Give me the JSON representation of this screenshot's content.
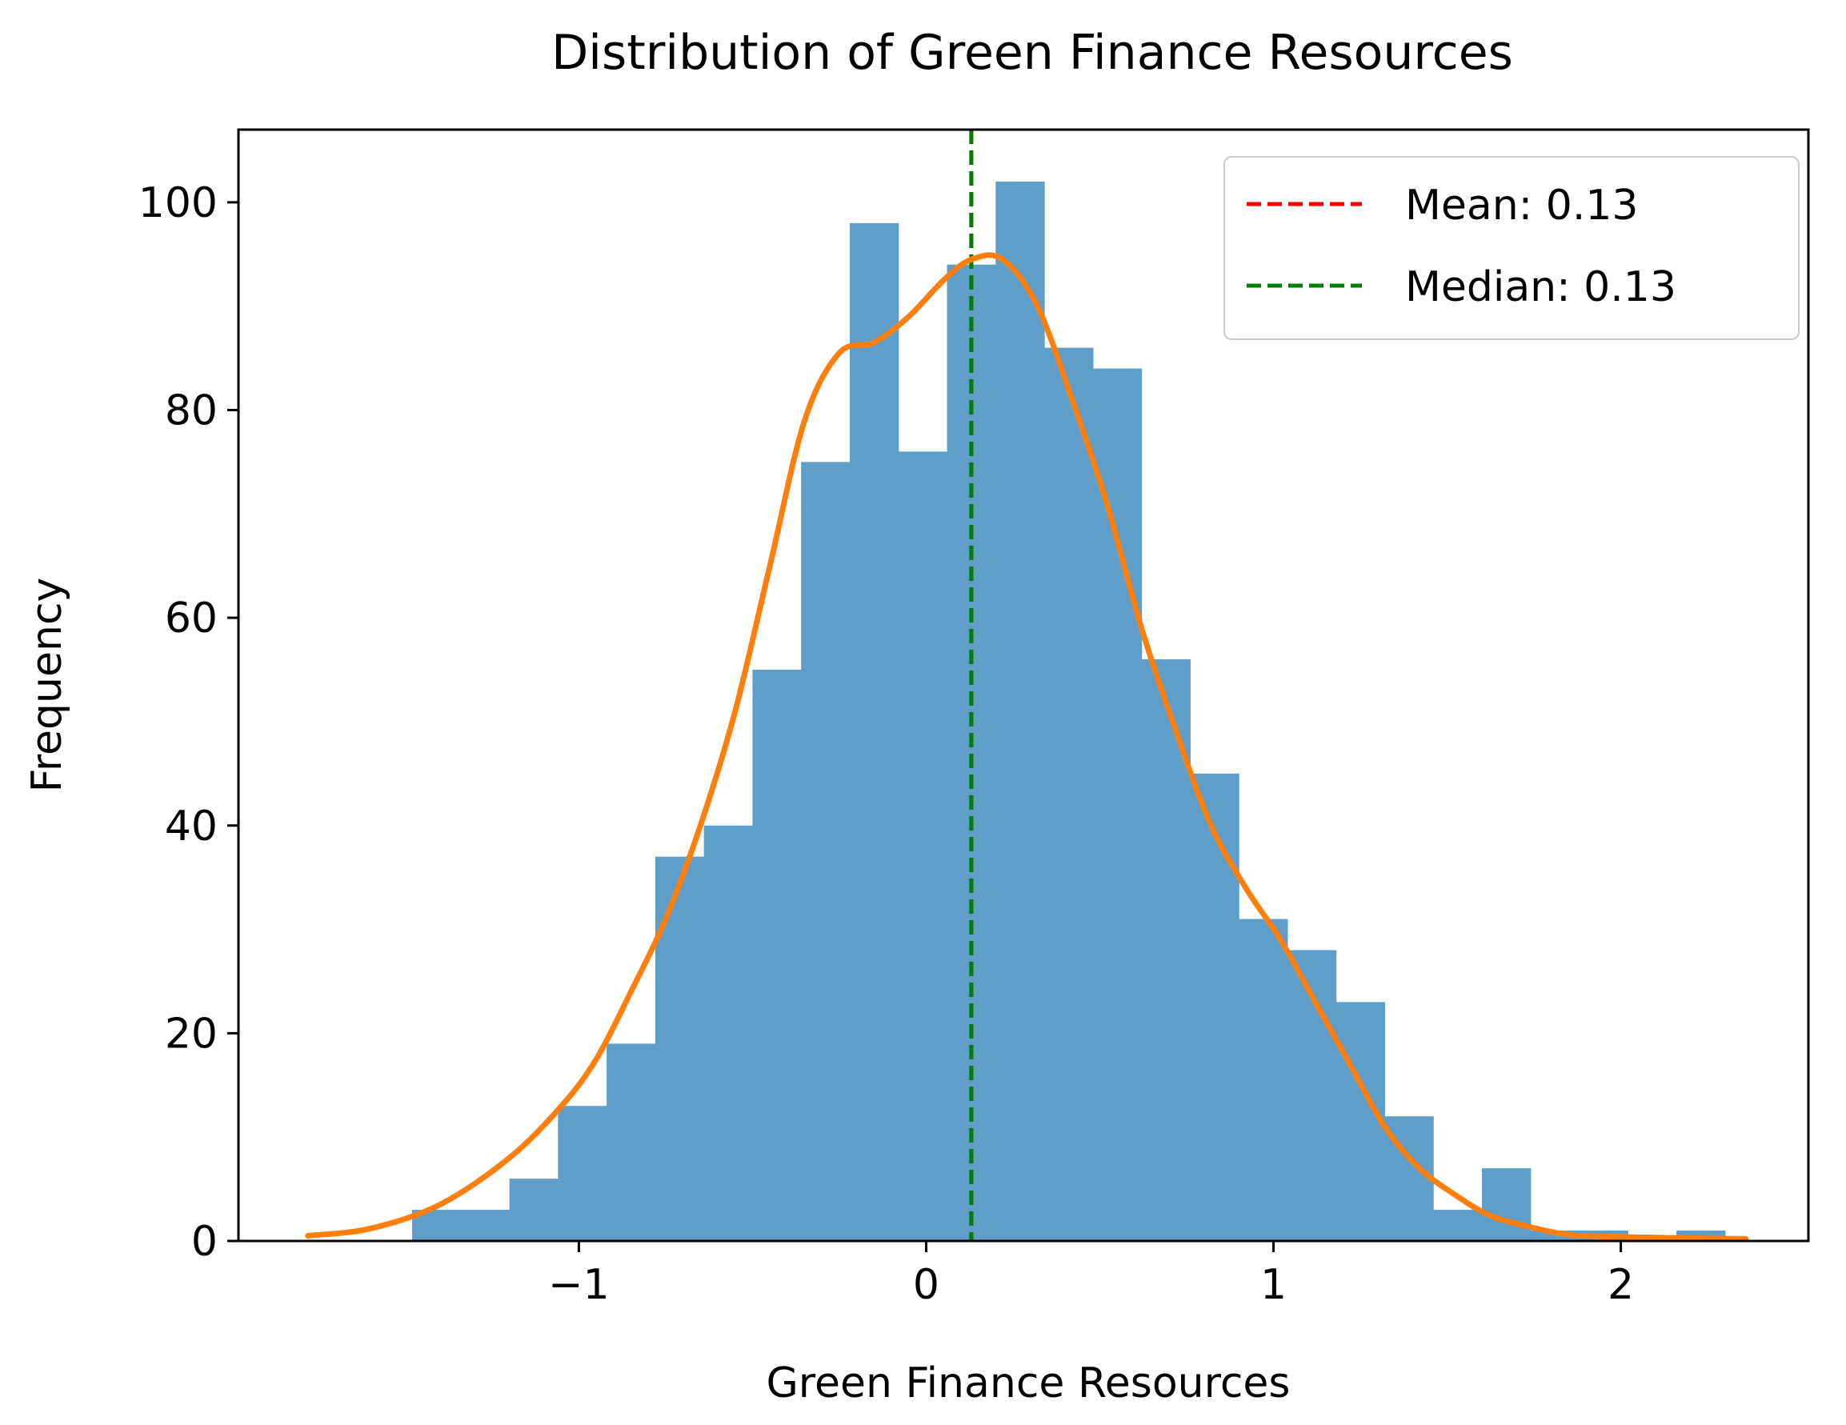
{
  "chart_data": {
    "type": "histogram",
    "title": "Distribution of Green Finance Resources",
    "xlabel": "Green Finance Resources",
    "ylabel": "Frequency",
    "xlim": [
      -1.98,
      2.54
    ],
    "ylim": [
      0,
      107
    ],
    "xticks": [
      -1,
      0,
      1,
      2
    ],
    "xtick_labels": [
      "−1",
      "0",
      "1",
      "2"
    ],
    "yticks": [
      0,
      20,
      40,
      60,
      80,
      100
    ],
    "ytick_labels": [
      "0",
      "20",
      "40",
      "60",
      "80",
      "100"
    ],
    "grid": false,
    "bins": [
      {
        "x0": -1.48,
        "x1": -1.34,
        "count": 3
      },
      {
        "x0": -1.34,
        "x1": -1.2,
        "count": 3
      },
      {
        "x0": -1.2,
        "x1": -1.06,
        "count": 6
      },
      {
        "x0": -1.06,
        "x1": -0.92,
        "count": 13
      },
      {
        "x0": -0.92,
        "x1": -0.78,
        "count": 19
      },
      {
        "x0": -0.78,
        "x1": -0.64,
        "count": 37
      },
      {
        "x0": -0.64,
        "x1": -0.5,
        "count": 40
      },
      {
        "x0": -0.5,
        "x1": -0.36,
        "count": 55
      },
      {
        "x0": -0.36,
        "x1": -0.22,
        "count": 75
      },
      {
        "x0": -0.22,
        "x1": -0.08,
        "count": 98
      },
      {
        "x0": -0.08,
        "x1": 0.06,
        "count": 76
      },
      {
        "x0": 0.06,
        "x1": 0.2,
        "count": 94
      },
      {
        "x0": 0.2,
        "x1": 0.34,
        "count": 102
      },
      {
        "x0": 0.34,
        "x1": 0.48,
        "count": 86
      },
      {
        "x0": 0.48,
        "x1": 0.62,
        "count": 84
      },
      {
        "x0": 0.62,
        "x1": 0.76,
        "count": 56
      },
      {
        "x0": 0.76,
        "x1": 0.9,
        "count": 45
      },
      {
        "x0": 0.9,
        "x1": 1.04,
        "count": 31
      },
      {
        "x0": 1.04,
        "x1": 1.18,
        "count": 28
      },
      {
        "x0": 1.18,
        "x1": 1.32,
        "count": 23
      },
      {
        "x0": 1.32,
        "x1": 1.46,
        "count": 12
      },
      {
        "x0": 1.46,
        "x1": 1.6,
        "count": 3
      },
      {
        "x0": 1.6,
        "x1": 1.74,
        "count": 7
      },
      {
        "x0": 1.74,
        "x1": 1.88,
        "count": 1
      },
      {
        "x0": 1.88,
        "x1": 2.02,
        "count": 1
      },
      {
        "x0": 2.02,
        "x1": 2.16,
        "count": 0
      },
      {
        "x0": 2.16,
        "x1": 2.3,
        "count": 1
      }
    ],
    "kde": {
      "x": [
        -1.78,
        -1.6,
        -1.4,
        -1.2,
        -1.05,
        -0.95,
        -0.85,
        -0.75,
        -0.65,
        -0.55,
        -0.45,
        -0.35,
        -0.25,
        -0.15,
        -0.05,
        0.05,
        0.13,
        0.22,
        0.32,
        0.42,
        0.52,
        0.62,
        0.72,
        0.82,
        0.92,
        1.02,
        1.12,
        1.22,
        1.32,
        1.42,
        1.52,
        1.62,
        1.72,
        1.85,
        2.0,
        2.15,
        2.36
      ],
      "y": [
        0.5,
        1.2,
        3.5,
        8,
        13,
        17.5,
        24,
        31,
        40,
        51,
        65,
        79,
        85.5,
        86.5,
        89,
        92.5,
        94.5,
        94.5,
        90,
        81,
        71,
        59,
        49,
        40,
        34,
        29,
        23,
        17,
        11,
        7,
        4.5,
        2.5,
        1.5,
        0.6,
        0.4,
        0.3,
        0.2
      ]
    },
    "lines": [
      {
        "label": "Mean: 0.13",
        "x": 0.13,
        "color": "#ff0000"
      },
      {
        "label": "Median: 0.13",
        "x": 0.13,
        "color": "#008000"
      }
    ],
    "legend_placement": "upper right",
    "colors": {
      "bars": "#5f9ec9",
      "kde": "#ff7f0e",
      "mean": "#ff0000",
      "median": "#008000"
    }
  }
}
